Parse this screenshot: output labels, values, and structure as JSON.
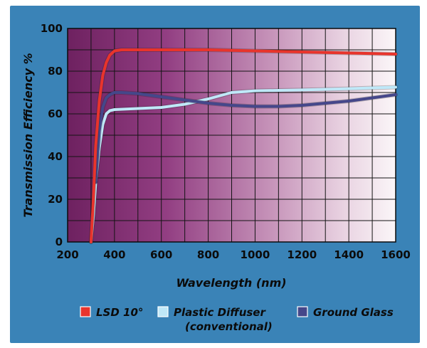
{
  "chart_data": {
    "type": "line",
    "xlabel": "Wavelength (nm)",
    "ylabel": "Transmission Efficiency %",
    "xlim": [
      200,
      1600
    ],
    "ylim": [
      0,
      100
    ],
    "xticks": [
      200,
      400,
      600,
      800,
      1000,
      1200,
      1400,
      1600
    ],
    "yticks": [
      0,
      20,
      40,
      60,
      80,
      100
    ],
    "grid": true,
    "legend_position": "bottom",
    "series": [
      {
        "name": "LSD 10°",
        "color": "#e8342c",
        "points": [
          [
            300,
            0
          ],
          [
            310,
            20
          ],
          [
            320,
            45
          ],
          [
            335,
            66
          ],
          [
            350,
            78
          ],
          [
            365,
            84
          ],
          [
            380,
            87.5
          ],
          [
            400,
            89.5
          ],
          [
            430,
            90
          ],
          [
            600,
            90
          ],
          [
            800,
            90
          ],
          [
            1000,
            89.5
          ],
          [
            1200,
            89
          ],
          [
            1400,
            88.5
          ],
          [
            1600,
            88
          ]
        ]
      },
      {
        "name": "Plastic Diffuser",
        "name_line2": "(conventional)",
        "color": "#bfe8f8",
        "points": [
          [
            300,
            0
          ],
          [
            310,
            12
          ],
          [
            320,
            28
          ],
          [
            335,
            44
          ],
          [
            350,
            55
          ],
          [
            365,
            60
          ],
          [
            380,
            61.5
          ],
          [
            400,
            62
          ],
          [
            500,
            62.5
          ],
          [
            600,
            63
          ],
          [
            700,
            64.5
          ],
          [
            800,
            67
          ],
          [
            900,
            70
          ],
          [
            1000,
            70.8
          ],
          [
            1100,
            71
          ],
          [
            1200,
            71.2
          ],
          [
            1400,
            71.8
          ],
          [
            1600,
            72.5
          ]
        ]
      },
      {
        "name": "Ground Glass",
        "color": "#45478a",
        "points": [
          [
            320,
            28
          ],
          [
            335,
            52
          ],
          [
            350,
            63
          ],
          [
            365,
            67.5
          ],
          [
            380,
            69
          ],
          [
            400,
            70
          ],
          [
            430,
            70
          ],
          [
            500,
            69.5
          ],
          [
            600,
            68
          ],
          [
            700,
            66.5
          ],
          [
            800,
            65
          ],
          [
            900,
            64
          ],
          [
            1000,
            63.5
          ],
          [
            1100,
            63.5
          ],
          [
            1200,
            64
          ],
          [
            1300,
            65
          ],
          [
            1400,
            66
          ],
          [
            1500,
            67.5
          ],
          [
            1600,
            69
          ]
        ]
      }
    ]
  }
}
